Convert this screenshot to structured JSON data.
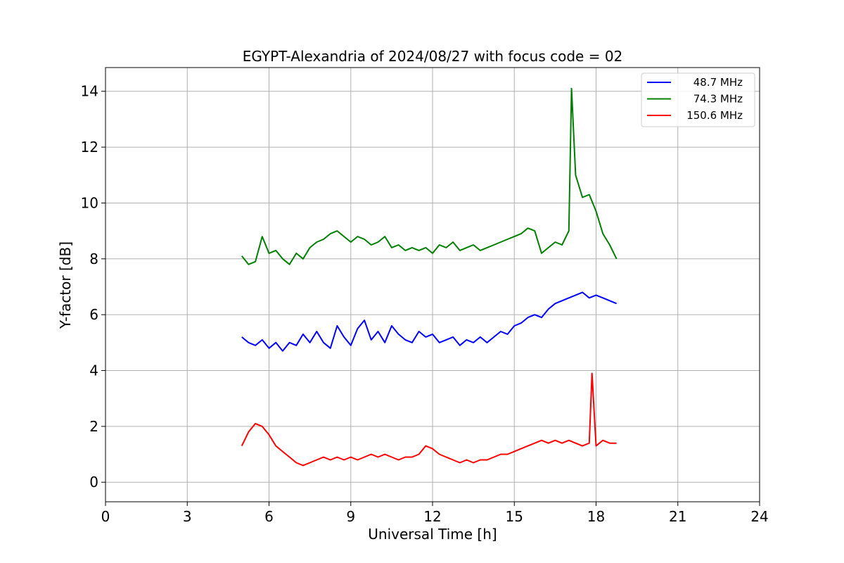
{
  "chart_data": {
    "type": "line",
    "title": "EGYPT-Alexandria of 2024/08/27 with focus code = 02",
    "xlabel": "Universal Time [h]",
    "ylabel": "Y-factor [dB]",
    "xlim": [
      0,
      24
    ],
    "ylim": [
      -0.7,
      14.85
    ],
    "xticks": [
      0,
      3,
      6,
      9,
      12,
      15,
      18,
      21,
      24
    ],
    "yticks": [
      0,
      2,
      4,
      6,
      8,
      10,
      12,
      14
    ],
    "grid": true,
    "legend_position": "top-right",
    "series": [
      {
        "name": "48.7 MHz",
        "color": "#0000ff",
        "x": [
          5.0,
          5.25,
          5.5,
          5.75,
          6.0,
          6.25,
          6.5,
          6.75,
          7.0,
          7.25,
          7.5,
          7.75,
          8.0,
          8.25,
          8.5,
          8.75,
          9.0,
          9.25,
          9.5,
          9.75,
          10.0,
          10.25,
          10.5,
          10.75,
          11.0,
          11.25,
          11.5,
          11.75,
          12.0,
          12.25,
          12.5,
          12.75,
          13.0,
          13.25,
          13.5,
          13.75,
          14.0,
          14.25,
          14.5,
          14.75,
          15.0,
          15.25,
          15.5,
          15.75,
          16.0,
          16.25,
          16.5,
          16.75,
          17.0,
          17.25,
          17.5,
          17.75,
          18.0,
          18.25,
          18.5,
          18.75
        ],
        "y": [
          5.2,
          5.0,
          4.9,
          5.1,
          4.8,
          5.0,
          4.7,
          5.0,
          4.9,
          5.3,
          5.0,
          5.4,
          5.0,
          4.8,
          5.6,
          5.2,
          4.9,
          5.5,
          5.8,
          5.1,
          5.4,
          5.0,
          5.6,
          5.3,
          5.1,
          5.0,
          5.4,
          5.2,
          5.3,
          5.0,
          5.1,
          5.2,
          4.9,
          5.1,
          5.0,
          5.2,
          5.0,
          5.2,
          5.4,
          5.3,
          5.6,
          5.7,
          5.9,
          6.0,
          5.9,
          6.2,
          6.4,
          6.5,
          6.6,
          6.7,
          6.8,
          6.6,
          6.7,
          6.6,
          6.5,
          6.4
        ]
      },
      {
        "name": "74.3 MHz",
        "color": "#008000",
        "x": [
          5.0,
          5.25,
          5.5,
          5.75,
          6.0,
          6.25,
          6.5,
          6.75,
          7.0,
          7.25,
          7.5,
          7.75,
          8.0,
          8.25,
          8.5,
          8.75,
          9.0,
          9.25,
          9.5,
          9.75,
          10.0,
          10.25,
          10.5,
          10.75,
          11.0,
          11.25,
          11.5,
          11.75,
          12.0,
          12.25,
          12.5,
          12.75,
          13.0,
          13.25,
          13.5,
          13.75,
          14.0,
          14.25,
          14.5,
          14.75,
          15.0,
          15.25,
          15.5,
          15.75,
          16.0,
          16.25,
          16.5,
          16.75,
          17.0,
          17.1,
          17.25,
          17.5,
          17.75,
          18.0,
          18.25,
          18.5,
          18.75
        ],
        "y": [
          8.1,
          7.8,
          7.9,
          8.8,
          8.2,
          8.3,
          8.0,
          7.8,
          8.2,
          8.0,
          8.4,
          8.6,
          8.7,
          8.9,
          9.0,
          8.8,
          8.6,
          8.8,
          8.7,
          8.5,
          8.6,
          8.8,
          8.4,
          8.5,
          8.3,
          8.4,
          8.3,
          8.4,
          8.2,
          8.5,
          8.4,
          8.6,
          8.3,
          8.4,
          8.5,
          8.3,
          8.4,
          8.5,
          8.6,
          8.7,
          8.8,
          8.9,
          9.1,
          9.0,
          8.2,
          8.4,
          8.6,
          8.5,
          9.0,
          14.1,
          11.0,
          10.2,
          10.3,
          9.7,
          8.9,
          8.5,
          8.0
        ]
      },
      {
        "name": "150.6 MHz",
        "color": "#ff0000",
        "x": [
          5.0,
          5.25,
          5.5,
          5.75,
          6.0,
          6.25,
          6.5,
          6.75,
          7.0,
          7.25,
          7.5,
          7.75,
          8.0,
          8.25,
          8.5,
          8.75,
          9.0,
          9.25,
          9.5,
          9.75,
          10.0,
          10.25,
          10.5,
          10.75,
          11.0,
          11.25,
          11.5,
          11.75,
          12.0,
          12.25,
          12.5,
          12.75,
          13.0,
          13.25,
          13.5,
          13.75,
          14.0,
          14.25,
          14.5,
          14.75,
          15.0,
          15.25,
          15.5,
          15.75,
          16.0,
          16.25,
          16.5,
          16.75,
          17.0,
          17.25,
          17.5,
          17.75,
          17.85,
          18.0,
          18.25,
          18.5,
          18.75
        ],
        "y": [
          1.3,
          1.8,
          2.1,
          2.0,
          1.7,
          1.3,
          1.1,
          0.9,
          0.7,
          0.6,
          0.7,
          0.8,
          0.9,
          0.8,
          0.9,
          0.8,
          0.9,
          0.8,
          0.9,
          1.0,
          0.9,
          1.0,
          0.9,
          0.8,
          0.9,
          0.9,
          1.0,
          1.3,
          1.2,
          1.0,
          0.9,
          0.8,
          0.7,
          0.8,
          0.7,
          0.8,
          0.8,
          0.9,
          1.0,
          1.0,
          1.1,
          1.2,
          1.3,
          1.4,
          1.5,
          1.4,
          1.5,
          1.4,
          1.5,
          1.4,
          1.3,
          1.4,
          3.9,
          1.3,
          1.5,
          1.4,
          1.4
        ]
      }
    ]
  }
}
